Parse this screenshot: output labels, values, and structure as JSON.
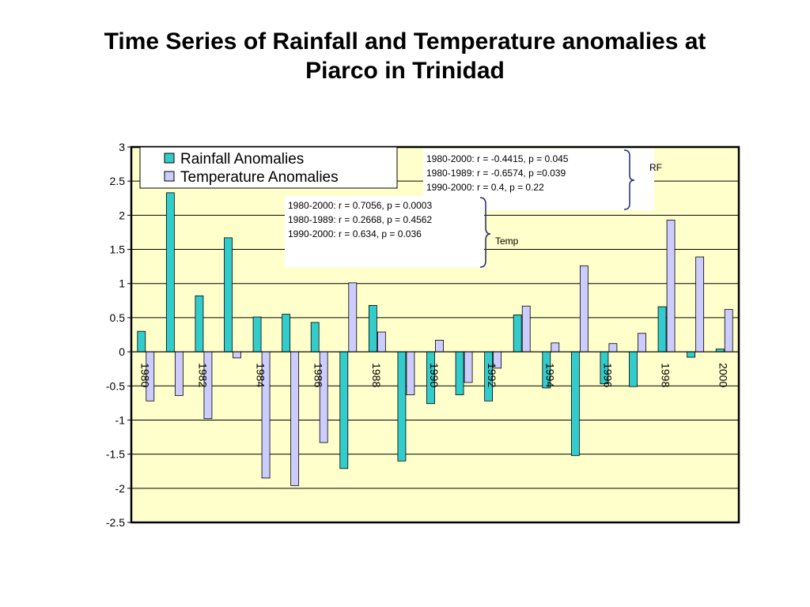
{
  "title": {
    "line1": "Time Series of Rainfall and Temperature anomalies at",
    "line2": "Piarco in Trinidad"
  },
  "colors": {
    "plot_background": "#FFFFCC",
    "rainfall_bar": "#33CCCC",
    "temperature_bar": "#CCCCFF",
    "gridline": "#000000"
  },
  "chart_data": {
    "type": "bar",
    "title": "",
    "xlabel": "",
    "ylabel": "",
    "ylim": [
      -2.5,
      3
    ],
    "yticks": [
      "3",
      "2.5",
      "2",
      "1.5",
      "1",
      "0.5",
      "0",
      "-0.5",
      "-1",
      "-1.5",
      "-2",
      "-2.5"
    ],
    "grid": true,
    "legend_position": "top-left",
    "categories": [
      "1980",
      "1981",
      "1982",
      "1983",
      "1984",
      "1985",
      "1986",
      "1987",
      "1988",
      "1989",
      "1990",
      "1991",
      "1992",
      "1993",
      "1994",
      "1995",
      "1996",
      "1997",
      "1998",
      "1999",
      "2000"
    ],
    "category_labels": [
      "1980",
      "",
      "1982",
      "",
      "1984",
      "",
      "1986",
      "",
      "1988",
      "",
      "1990",
      "",
      "1992",
      "",
      "1994",
      "",
      "1996",
      "",
      "1998",
      "",
      "2000"
    ],
    "series": [
      {
        "name": "Rainfall Anomalies",
        "values": [
          0.3,
          2.33,
          0.82,
          1.67,
          0.51,
          0.55,
          0.43,
          -1.71,
          0.68,
          -1.6,
          -0.76,
          -0.63,
          -0.72,
          0.54,
          -0.53,
          -1.52,
          -0.47,
          -0.51,
          0.66,
          -0.08,
          0.04
        ]
      },
      {
        "name": "Temperature Anomalies",
        "values": [
          -0.72,
          -0.64,
          -0.98,
          -0.09,
          -1.85,
          -1.96,
          -1.33,
          1.01,
          0.29,
          -0.63,
          0.17,
          -0.45,
          -0.24,
          0.67,
          0.13,
          1.26,
          0.12,
          0.27,
          1.93,
          1.39,
          0.62
        ]
      }
    ],
    "annotations": {
      "rf_box": [
        "1980-2000: r = -0.4415, p = 0.045",
        "1980-1989: r = -0.6574, p =0.039",
        "1990-2000: r = 0.4, p = 0.22"
      ],
      "rf_label": "RF",
      "temp_box": [
        "1980-2000: r = 0.7056, p = 0.0003",
        "1980-1989: r = 0.2668, p = 0.4562",
        "1990-2000: r = 0.634, p = 0.036"
      ],
      "temp_label": "Temp"
    }
  }
}
